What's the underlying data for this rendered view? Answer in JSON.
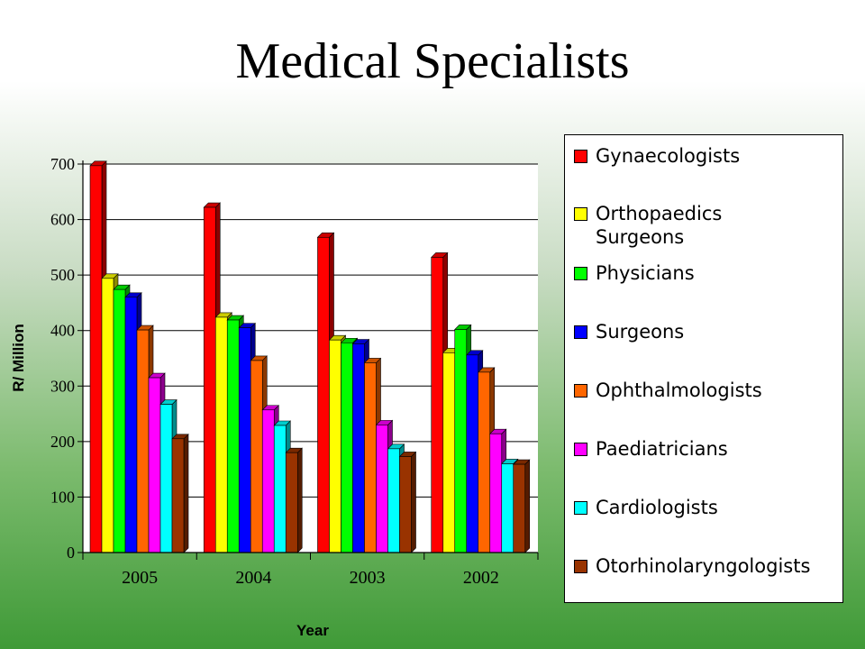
{
  "slide": {
    "title": "Medical Specialists"
  },
  "chart_data": {
    "type": "bar",
    "title": "",
    "xlabel": "Year",
    "ylabel": "R/ Million",
    "categories": [
      "2005",
      "2004",
      "2003",
      "2002"
    ],
    "ylim": [
      0,
      700
    ],
    "yticks": [
      "0",
      "100",
      "200",
      "300",
      "400",
      "500",
      "600",
      "700"
    ],
    "grid": true,
    "legend_position": "right",
    "series": [
      {
        "name": "Gynaecologists",
        "color": "#ff0000",
        "values": [
          697,
          622,
          568,
          532
        ]
      },
      {
        "name": "Orthopaedics Surgeons",
        "color": "#ffff00",
        "values": [
          494,
          424,
          383,
          360
        ]
      },
      {
        "name": "Physicians",
        "color": "#00ff00",
        "values": [
          474,
          419,
          378,
          402
        ]
      },
      {
        "name": "Surgeons",
        "color": "#0000ff",
        "values": [
          460,
          405,
          376,
          356
        ]
      },
      {
        "name": "Ophthalmologists",
        "color": "#ff6600",
        "values": [
          401,
          346,
          342,
          325
        ]
      },
      {
        "name": "Paediatricians",
        "color": "#ff00ff",
        "values": [
          315,
          257,
          230,
          214
        ]
      },
      {
        "name": "Cardiologists",
        "color": "#00ffff",
        "values": [
          267,
          229,
          187,
          160
        ]
      },
      {
        "name": "Otorhinolaryngologists",
        "color": "#993300",
        "values": [
          205,
          180,
          173,
          159
        ]
      }
    ]
  }
}
